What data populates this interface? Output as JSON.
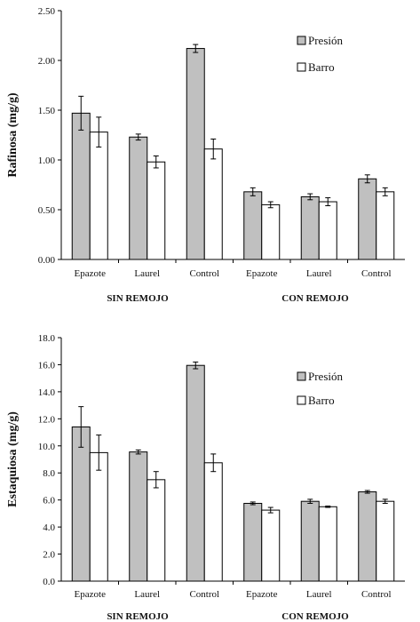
{
  "colors": {
    "presion": "#c0c0c0",
    "barro": "#ffffff",
    "axis": "#000000"
  },
  "chart_data": [
    {
      "type": "bar",
      "ylabel": "Rafinosa (mg/g)",
      "ylim": [
        0,
        2.5
      ],
      "yticks": [
        "0.00",
        "0.50",
        "1.00",
        "1.50",
        "2.00",
        "2.50"
      ],
      "categories": [
        "Epazote",
        "Laurel",
        "Control",
        "Epazote",
        "Laurel",
        "Control"
      ],
      "groups": [
        "SIN REMOJO",
        "CON REMOJO"
      ],
      "legend_position": "top-right",
      "series": [
        {
          "name": "Presión",
          "values": [
            1.47,
            1.23,
            2.12,
            0.68,
            0.63,
            0.81
          ],
          "errors": [
            0.17,
            0.03,
            0.04,
            0.04,
            0.03,
            0.04
          ]
        },
        {
          "name": "Barro",
          "values": [
            1.28,
            0.98,
            1.11,
            0.55,
            0.58,
            0.68
          ],
          "errors": [
            0.15,
            0.06,
            0.1,
            0.03,
            0.04,
            0.04
          ]
        }
      ]
    },
    {
      "type": "bar",
      "ylabel": "Estaquiosa (mg/g)",
      "ylim": [
        0,
        18
      ],
      "yticks": [
        "0.0",
        "2.0",
        "4.0",
        "6.0",
        "8.0",
        "10.0",
        "12.0",
        "14.0",
        "16.0",
        "18.0"
      ],
      "categories": [
        "Epazote",
        "Laurel",
        "Control",
        "Epazote",
        "Laurel",
        "Control"
      ],
      "groups": [
        "SIN REMOJO",
        "CON REMOJO"
      ],
      "legend_position": "top-right",
      "series": [
        {
          "name": "Presión",
          "values": [
            11.4,
            9.55,
            15.95,
            5.75,
            5.9,
            6.6
          ],
          "errors": [
            1.5,
            0.15,
            0.25,
            0.1,
            0.15,
            0.1
          ]
        },
        {
          "name": "Barro",
          "values": [
            9.5,
            7.5,
            8.75,
            5.25,
            5.5,
            5.9
          ],
          "errors": [
            1.3,
            0.6,
            0.65,
            0.2,
            0.05,
            0.15
          ]
        }
      ]
    }
  ]
}
